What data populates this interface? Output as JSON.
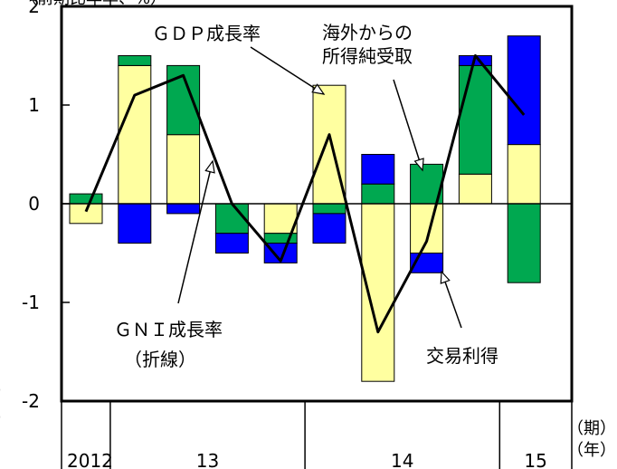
{
  "chart_data": {
    "type": "bar",
    "stacked": true,
    "ylim": [
      -2,
      2
    ],
    "y_ticks": [
      "2",
      "1",
      "0",
      "-1",
      "-2"
    ],
    "colors": {
      "gdp": "#ffffa0",
      "income_abroad": "#00a850",
      "trade_gain": "#0000ff",
      "gni_line": "#000000",
      "border": "#000000"
    },
    "quarters": 10,
    "series": [
      {
        "key": "gdp",
        "values": [
          -0.2,
          1.4,
          0.7,
          0.0,
          -0.3,
          1.2,
          -1.8,
          -0.5,
          0.3,
          0.6
        ]
      },
      {
        "key": "income_abroad",
        "values": [
          0.1,
          0.1,
          0.7,
          -0.3,
          -0.1,
          -0.1,
          0.2,
          0.4,
          1.1,
          -0.8
        ]
      },
      {
        "key": "trade_gain",
        "values": [
          0.0,
          -0.4,
          -0.1,
          -0.2,
          -0.2,
          -0.3,
          0.3,
          -0.2,
          0.1,
          1.1
        ]
      }
    ],
    "gni_line": [
      -0.08,
      1.1,
      1.3,
      0.0,
      -0.58,
      0.7,
      -1.3,
      -0.38,
      1.5,
      0.9
    ],
    "annotations": {
      "gdp_label": "ＧＤＰ成長率",
      "abroad_label_1": "海外からの",
      "abroad_label_2": "所得純受取",
      "gni_label_1": "ＧＮＩ成長率",
      "gni_label_2": "（折線）",
      "trade_label": "交易利得"
    },
    "x_axis": {
      "years": [
        {
          "label": "2012",
          "from": 0,
          "to": 1
        },
        {
          "label": "13",
          "from": 1,
          "to": 5
        },
        {
          "label": "14",
          "from": 5,
          "to": 9
        },
        {
          "label": "15",
          "from": 9,
          "to": 10
        }
      ],
      "period_unit": "（期）",
      "year_unit": "（年）"
    },
    "left_fragments": {
      "top": "）",
      "bottom": "）"
    },
    "top_clip_text": "（前期比年率、%）"
  }
}
